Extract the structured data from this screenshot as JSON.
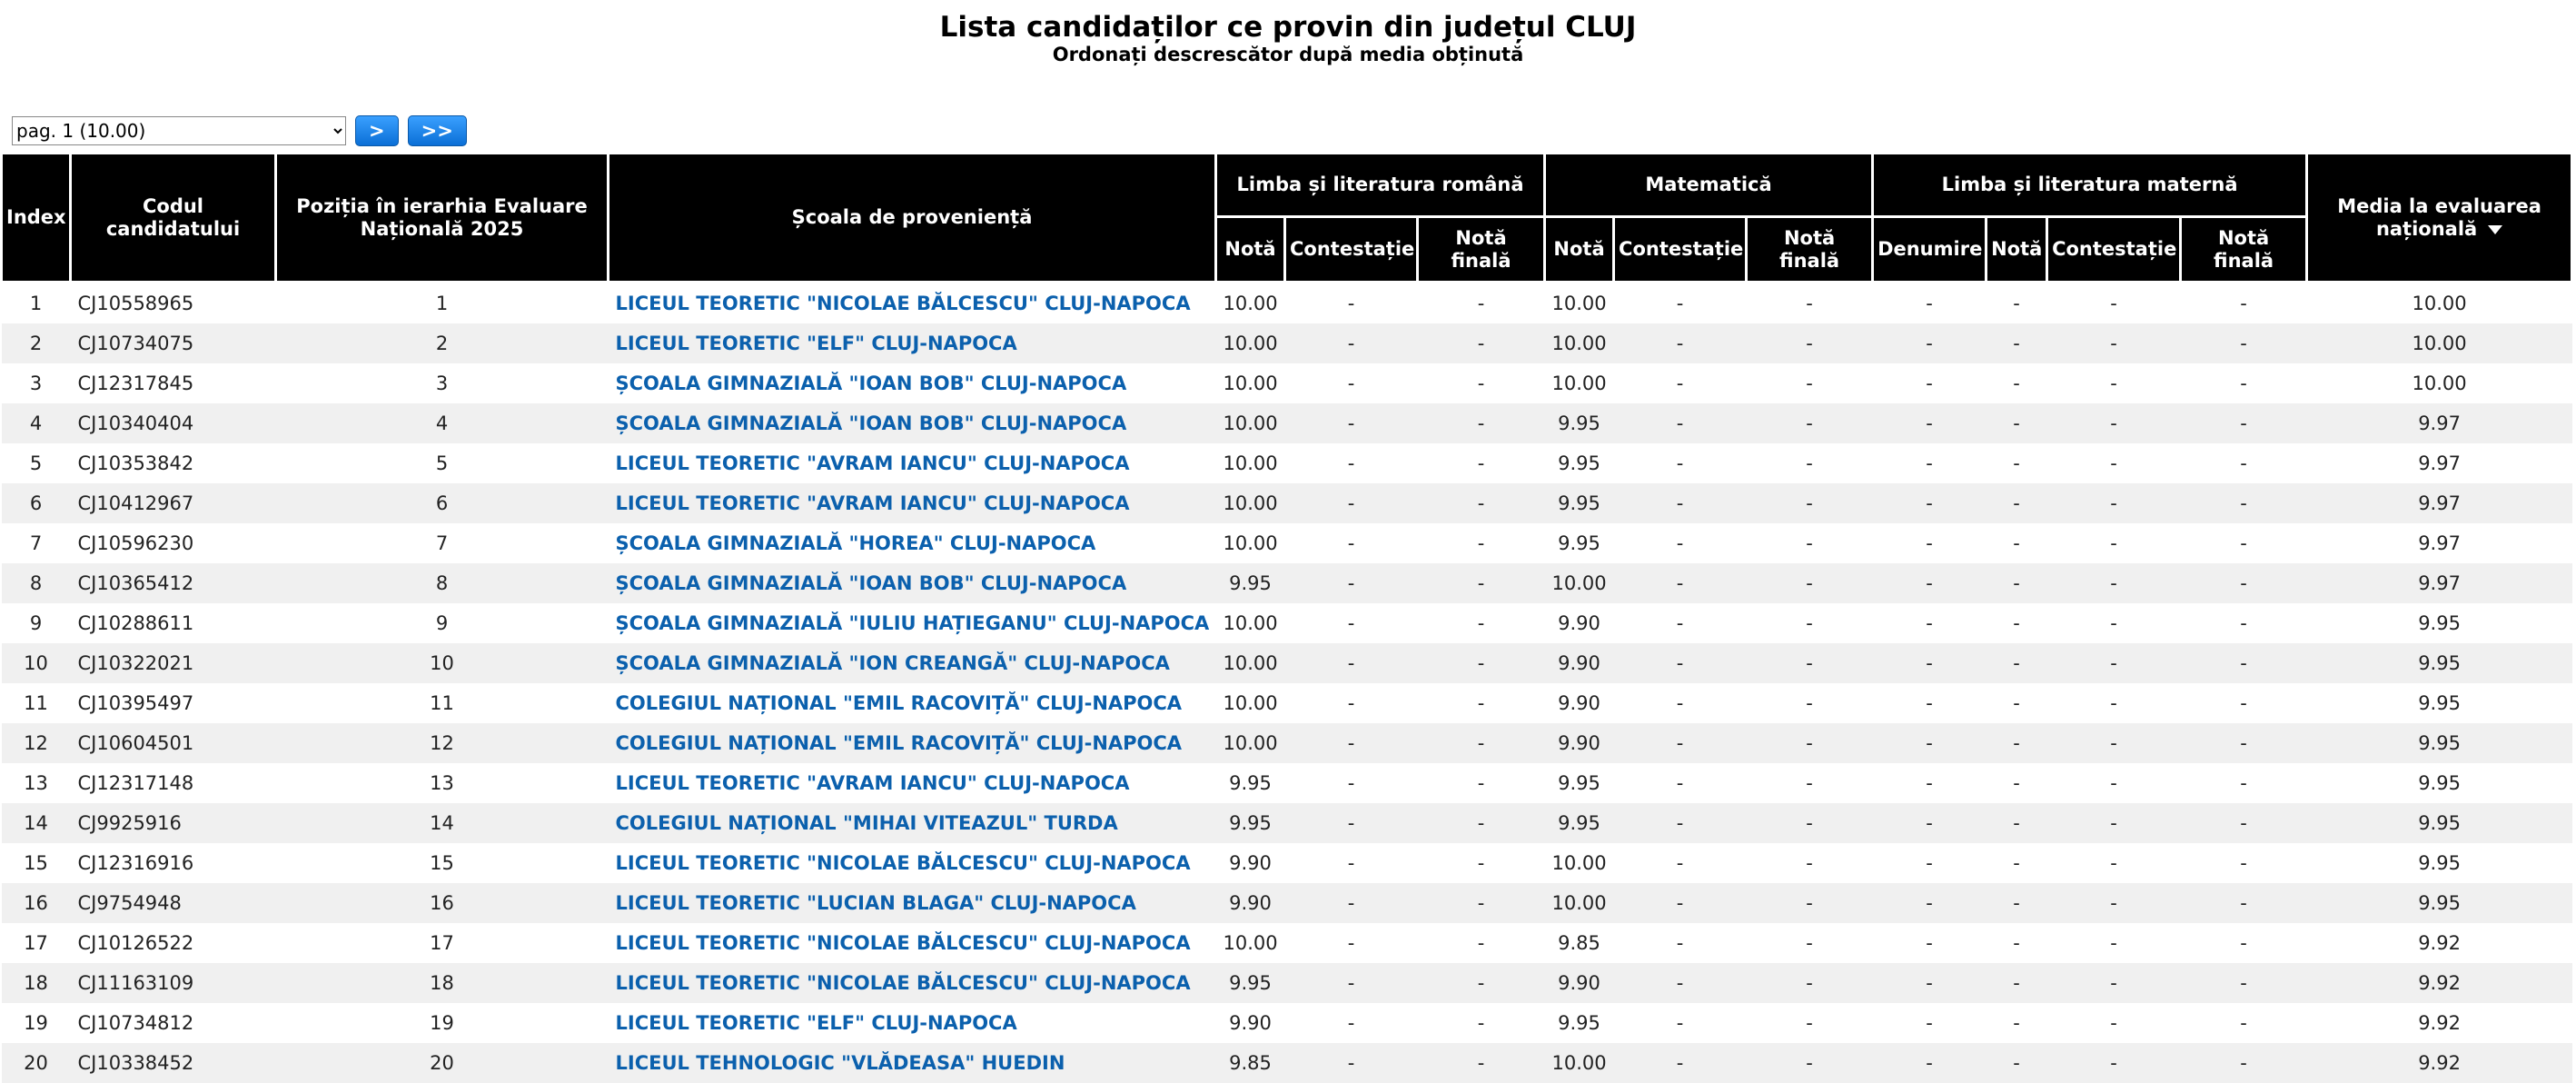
{
  "header": {
    "title": "Lista candidaților ce provin din județul CLUJ",
    "subtitle": "Ordonați descrescător după media obținută"
  },
  "pager": {
    "select": "pag. 1 (10.00)",
    "next": ">",
    "last": ">>"
  },
  "table": {
    "headers": [
      "Index",
      "Codul candidatului",
      "Poziția în ierarhia Evaluare Națională 2025",
      "Școala de proveniență",
      "Limba și literatura română",
      "Matematică",
      "Limba și literatura maternă",
      "Media la evaluarea națională"
    ],
    "subheaders": [
      "Notă",
      "Contestație",
      "Notă finală",
      "Notă",
      "Contestație",
      "Notă finală",
      "Denumire",
      "Notă",
      "Contestație",
      "Notă finală"
    ],
    "rows": [
      [
        "1",
        "CJ10558965",
        "1",
        "LICEUL TEORETIC \"NICOLAE BĂLCESCU\" CLUJ-NAPOCA",
        "10.00",
        "-",
        "-",
        "10.00",
        "-",
        "-",
        "-",
        "-",
        "-",
        "-",
        "10.00"
      ],
      [
        "2",
        "CJ10734075",
        "2",
        "LICEUL TEORETIC \"ELF\" CLUJ-NAPOCA",
        "10.00",
        "-",
        "-",
        "10.00",
        "-",
        "-",
        "-",
        "-",
        "-",
        "-",
        "10.00"
      ],
      [
        "3",
        "CJ12317845",
        "3",
        "ȘCOALA GIMNAZIALĂ \"IOAN BOB\" CLUJ-NAPOCA",
        "10.00",
        "-",
        "-",
        "10.00",
        "-",
        "-",
        "-",
        "-",
        "-",
        "-",
        "10.00"
      ],
      [
        "4",
        "CJ10340404",
        "4",
        "ȘCOALA GIMNAZIALĂ \"IOAN BOB\" CLUJ-NAPOCA",
        "10.00",
        "-",
        "-",
        "9.95",
        "-",
        "-",
        "-",
        "-",
        "-",
        "-",
        "9.97"
      ],
      [
        "5",
        "CJ10353842",
        "5",
        "LICEUL TEORETIC \"AVRAM IANCU\" CLUJ-NAPOCA",
        "10.00",
        "-",
        "-",
        "9.95",
        "-",
        "-",
        "-",
        "-",
        "-",
        "-",
        "9.97"
      ],
      [
        "6",
        "CJ10412967",
        "6",
        "LICEUL TEORETIC \"AVRAM IANCU\" CLUJ-NAPOCA",
        "10.00",
        "-",
        "-",
        "9.95",
        "-",
        "-",
        "-",
        "-",
        "-",
        "-",
        "9.97"
      ],
      [
        "7",
        "CJ10596230",
        "7",
        "ȘCOALA GIMNAZIALĂ \"HOREA\" CLUJ-NAPOCA",
        "10.00",
        "-",
        "-",
        "9.95",
        "-",
        "-",
        "-",
        "-",
        "-",
        "-",
        "9.97"
      ],
      [
        "8",
        "CJ10365412",
        "8",
        "ȘCOALA GIMNAZIALĂ \"IOAN BOB\" CLUJ-NAPOCA",
        "9.95",
        "-",
        "-",
        "10.00",
        "-",
        "-",
        "-",
        "-",
        "-",
        "-",
        "9.97"
      ],
      [
        "9",
        "CJ10288611",
        "9",
        "ȘCOALA GIMNAZIALĂ \"IULIU HAȚIEGANU\" CLUJ-NAPOCA",
        "10.00",
        "-",
        "-",
        "9.90",
        "-",
        "-",
        "-",
        "-",
        "-",
        "-",
        "9.95"
      ],
      [
        "10",
        "CJ10322021",
        "10",
        "ȘCOALA GIMNAZIALĂ \"ION CREANGĂ\" CLUJ-NAPOCA",
        "10.00",
        "-",
        "-",
        "9.90",
        "-",
        "-",
        "-",
        "-",
        "-",
        "-",
        "9.95"
      ],
      [
        "11",
        "CJ10395497",
        "11",
        "COLEGIUL NAȚIONAL \"EMIL RACOVIȚĂ\" CLUJ-NAPOCA",
        "10.00",
        "-",
        "-",
        "9.90",
        "-",
        "-",
        "-",
        "-",
        "-",
        "-",
        "9.95"
      ],
      [
        "12",
        "CJ10604501",
        "12",
        "COLEGIUL NAȚIONAL \"EMIL RACOVIȚĂ\" CLUJ-NAPOCA",
        "10.00",
        "-",
        "-",
        "9.90",
        "-",
        "-",
        "-",
        "-",
        "-",
        "-",
        "9.95"
      ],
      [
        "13",
        "CJ12317148",
        "13",
        "LICEUL TEORETIC \"AVRAM IANCU\" CLUJ-NAPOCA",
        "9.95",
        "-",
        "-",
        "9.95",
        "-",
        "-",
        "-",
        "-",
        "-",
        "-",
        "9.95"
      ],
      [
        "14",
        "CJ9925916",
        "14",
        "COLEGIUL NAȚIONAL \"MIHAI VITEAZUL\" TURDA",
        "9.95",
        "-",
        "-",
        "9.95",
        "-",
        "-",
        "-",
        "-",
        "-",
        "-",
        "9.95"
      ],
      [
        "15",
        "CJ12316916",
        "15",
        "LICEUL TEORETIC \"NICOLAE BĂLCESCU\" CLUJ-NAPOCA",
        "9.90",
        "-",
        "-",
        "10.00",
        "-",
        "-",
        "-",
        "-",
        "-",
        "-",
        "9.95"
      ],
      [
        "16",
        "CJ9754948",
        "16",
        "LICEUL TEORETIC \"LUCIAN BLAGA\" CLUJ-NAPOCA",
        "9.90",
        "-",
        "-",
        "10.00",
        "-",
        "-",
        "-",
        "-",
        "-",
        "-",
        "9.95"
      ],
      [
        "17",
        "CJ10126522",
        "17",
        "LICEUL TEORETIC \"NICOLAE BĂLCESCU\" CLUJ-NAPOCA",
        "10.00",
        "-",
        "-",
        "9.85",
        "-",
        "-",
        "-",
        "-",
        "-",
        "-",
        "9.92"
      ],
      [
        "18",
        "CJ11163109",
        "18",
        "LICEUL TEORETIC \"NICOLAE BĂLCESCU\" CLUJ-NAPOCA",
        "9.95",
        "-",
        "-",
        "9.90",
        "-",
        "-",
        "-",
        "-",
        "-",
        "-",
        "9.92"
      ],
      [
        "19",
        "CJ10734812",
        "19",
        "LICEUL TEORETIC \"ELF\" CLUJ-NAPOCA",
        "9.90",
        "-",
        "-",
        "9.95",
        "-",
        "-",
        "-",
        "-",
        "-",
        "-",
        "9.92"
      ],
      [
        "20",
        "CJ10338452",
        "20",
        "LICEUL TEHNOLOGIC \"VLĂDEASA\" HUEDIN",
        "9.85",
        "-",
        "-",
        "10.00",
        "-",
        "-",
        "-",
        "-",
        "-",
        "-",
        "9.92"
      ]
    ]
  }
}
